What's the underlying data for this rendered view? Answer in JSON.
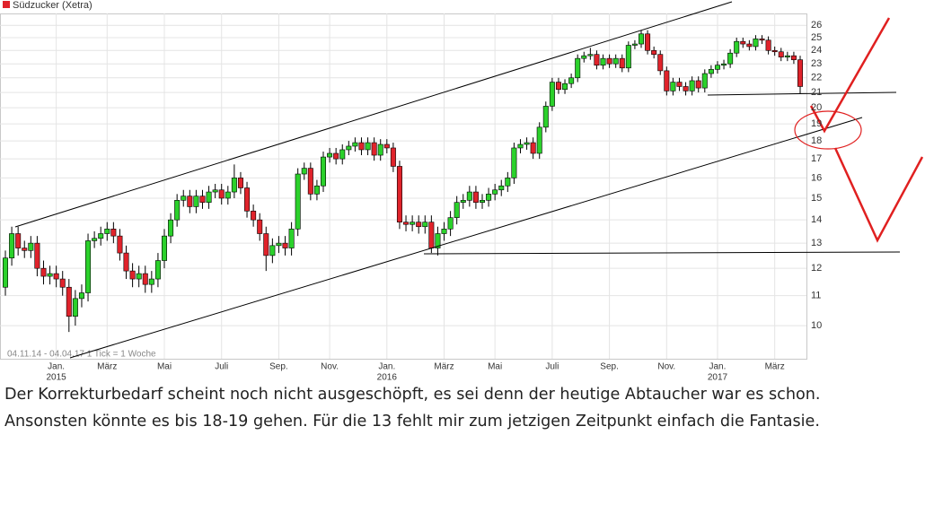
{
  "chart_data": {
    "type": "candlestick",
    "title": "Südzucker (Xetra)",
    "period_note": "04.11.14 - 04.04.17   1 Tick = 1 Woche",
    "categories": [
      null,
      null,
      null,
      null,
      null,
      null,
      null,
      null,
      "Jan.",
      null,
      null,
      null,
      null,
      null,
      null,
      null,
      "März",
      null,
      null,
      null,
      null,
      null,
      null,
      null,
      null,
      "Mai",
      null,
      null,
      null,
      null,
      null,
      null,
      null,
      null,
      "Juli",
      null,
      null,
      null,
      null,
      null,
      null,
      null,
      null,
      "Sep.",
      null,
      null,
      null,
      null,
      null,
      null,
      null,
      "Nov.",
      null,
      null,
      null,
      null,
      null,
      null,
      null,
      null,
      "Jan.",
      null,
      null,
      null,
      null,
      null,
      null,
      null,
      null,
      "März",
      null,
      null,
      null,
      null,
      null,
      null,
      null,
      "Mai",
      null,
      null,
      null,
      null,
      null,
      null,
      null,
      null,
      "Juli",
      null,
      null,
      null,
      null,
      null,
      null,
      null,
      null,
      "Sep.",
      null,
      null,
      null,
      null,
      null,
      null,
      null,
      null,
      "Nov.",
      null,
      null,
      null,
      null,
      null,
      null,
      null,
      "Jan.",
      null,
      null,
      null,
      null,
      null,
      null,
      null,
      null,
      "März",
      null,
      null,
      null,
      null
    ],
    "category_years": [
      null,
      null,
      null,
      null,
      null,
      null,
      null,
      null,
      "2015",
      null,
      null,
      null,
      null,
      null,
      null,
      null,
      null,
      null,
      null,
      null,
      null,
      null,
      null,
      null,
      null,
      null,
      null,
      null,
      null,
      null,
      null,
      null,
      null,
      null,
      null,
      null,
      null,
      null,
      null,
      null,
      null,
      null,
      null,
      null,
      null,
      null,
      null,
      null,
      null,
      null,
      null,
      null,
      null,
      null,
      null,
      null,
      null,
      null,
      null,
      null,
      "2016",
      null,
      null,
      null,
      null,
      null,
      null,
      null,
      null,
      null,
      null,
      null,
      null,
      null,
      null,
      null,
      null,
      null,
      null,
      null,
      null,
      null,
      null,
      null,
      null,
      null,
      null,
      null,
      null,
      null,
      null,
      null,
      null,
      null,
      null,
      null,
      null,
      null,
      null,
      null,
      null,
      null,
      null,
      null,
      null,
      null,
      null,
      null,
      null,
      null,
      null,
      null,
      "2017",
      null,
      null,
      null,
      null,
      null,
      null,
      null,
      null,
      null,
      null,
      null,
      null,
      null
    ],
    "open": [
      11.3,
      12.4,
      13.4,
      12.8,
      12.7,
      13.0,
      12.0,
      11.7,
      11.8,
      11.6,
      11.3,
      10.3,
      10.9,
      11.1,
      13.1,
      13.2,
      13.4,
      13.6,
      13.3,
      12.6,
      11.9,
      11.6,
      11.8,
      11.4,
      11.6,
      12.3,
      13.3,
      14.0,
      14.9,
      15.1,
      14.6,
      15.1,
      14.8,
      15.3,
      15.4,
      15.0,
      15.3,
      16.0,
      15.5,
      14.4,
      14.0,
      13.4,
      12.5,
      12.9,
      13.0,
      12.8,
      13.6,
      16.2,
      16.5,
      15.2,
      15.6,
      17.1,
      17.3,
      17.0,
      17.5,
      17.7,
      17.9,
      17.5,
      17.9,
      17.2,
      17.8,
      17.6,
      16.6,
      13.9,
      13.8,
      13.9,
      13.7,
      13.9,
      12.8,
      13.4,
      13.6,
      14.1,
      14.8,
      14.9,
      15.3,
      14.8,
      14.9,
      15.2,
      15.4,
      15.6,
      16.0,
      17.6,
      17.8,
      17.9,
      17.3,
      18.8,
      20.1,
      21.7,
      21.2,
      21.6,
      22.0,
      23.4,
      23.6,
      23.7,
      22.9,
      23.4,
      23.0,
      23.4,
      22.7,
      24.4,
      24.5,
      25.3,
      24.0,
      23.7,
      22.5,
      21.1,
      21.7,
      21.4,
      21.1,
      21.8,
      21.3,
      22.3,
      22.6,
      22.9,
      23.0,
      23.8,
      24.7,
      24.5,
      24.3,
      24.9,
      24.8,
      24.0,
      23.9,
      23.5,
      23.6,
      23.3
    ],
    "high": [
      12.7,
      13.7,
      13.7,
      13.1,
      13.3,
      13.3,
      12.3,
      12.1,
      12.1,
      11.9,
      11.6,
      11.2,
      11.4,
      13.4,
      13.5,
      13.7,
      13.9,
      13.9,
      13.6,
      12.9,
      12.2,
      12.1,
      12.1,
      11.9,
      12.6,
      13.6,
      14.3,
      15.2,
      15.4,
      15.4,
      15.4,
      15.4,
      15.6,
      15.7,
      15.7,
      15.6,
      16.7,
      16.3,
      15.8,
      14.7,
      14.3,
      13.7,
      13.2,
      13.3,
      13.3,
      13.9,
      16.5,
      16.8,
      16.8,
      15.9,
      17.4,
      17.6,
      17.6,
      17.8,
      18.0,
      18.2,
      18.2,
      18.2,
      18.2,
      18.1,
      18.1,
      17.9,
      16.9,
      14.2,
      14.2,
      14.2,
      14.2,
      14.2,
      13.7,
      13.9,
      14.4,
      15.1,
      15.2,
      15.6,
      15.6,
      15.2,
      15.5,
      15.7,
      15.9,
      16.3,
      17.9,
      18.1,
      18.2,
      18.2,
      19.1,
      20.4,
      22.0,
      22.0,
      21.9,
      22.3,
      23.7,
      23.9,
      24.2,
      24.0,
      23.7,
      23.7,
      23.7,
      23.7,
      24.7,
      24.8,
      25.6,
      25.6,
      24.3,
      24.0,
      22.8,
      22.0,
      22.0,
      21.7,
      22.1,
      22.1,
      22.6,
      22.9,
      23.2,
      23.3,
      24.1,
      25.0,
      25.0,
      24.8,
      25.2,
      25.2,
      25.1,
      24.3,
      24.2,
      23.9,
      23.9,
      23.6
    ],
    "low": [
      11.0,
      12.1,
      12.5,
      12.4,
      12.4,
      11.7,
      11.4,
      11.4,
      11.3,
      11.0,
      9.8,
      10.0,
      10.6,
      10.8,
      12.8,
      12.9,
      13.1,
      13.0,
      12.3,
      11.6,
      11.3,
      11.3,
      11.1,
      11.1,
      11.3,
      12.0,
      13.0,
      13.7,
      14.6,
      14.3,
      14.3,
      14.5,
      14.5,
      15.0,
      14.7,
      14.7,
      15.0,
      15.2,
      14.1,
      13.7,
      13.1,
      11.9,
      12.2,
      12.6,
      12.5,
      12.5,
      13.3,
      15.9,
      14.9,
      14.9,
      15.3,
      16.8,
      16.7,
      16.7,
      17.2,
      17.4,
      17.2,
      17.2,
      16.9,
      16.9,
      17.3,
      16.3,
      13.6,
      13.5,
      13.5,
      13.4,
      13.4,
      12.6,
      12.5,
      13.1,
      13.3,
      13.8,
      14.5,
      14.6,
      14.5,
      14.5,
      14.6,
      14.9,
      15.1,
      15.3,
      15.7,
      17.3,
      17.5,
      17.0,
      17.0,
      18.5,
      19.8,
      20.9,
      20.9,
      21.3,
      21.7,
      23.1,
      23.3,
      22.6,
      22.6,
      22.7,
      22.7,
      22.4,
      22.4,
      24.1,
      24.2,
      23.7,
      23.4,
      22.2,
      20.8,
      20.8,
      21.1,
      20.8,
      20.8,
      21.0,
      21.0,
      22.0,
      22.3,
      22.6,
      22.7,
      23.5,
      24.2,
      24.0,
      24.0,
      24.5,
      23.7,
      23.6,
      23.2,
      23.2,
      23.0,
      20.9
    ],
    "close": [
      12.4,
      13.4,
      12.8,
      12.7,
      13.0,
      12.0,
      11.7,
      11.8,
      11.6,
      11.3,
      10.3,
      10.9,
      11.1,
      13.1,
      13.2,
      13.4,
      13.6,
      13.3,
      12.6,
      11.9,
      11.6,
      11.8,
      11.4,
      11.6,
      12.3,
      13.3,
      14.0,
      14.9,
      15.1,
      14.6,
      15.1,
      14.8,
      15.3,
      15.4,
      15.0,
      15.3,
      16.0,
      15.5,
      14.4,
      14.0,
      13.4,
      12.5,
      12.9,
      13.0,
      12.8,
      13.6,
      16.2,
      16.5,
      15.2,
      15.6,
      17.1,
      17.3,
      17.0,
      17.5,
      17.7,
      17.9,
      17.5,
      17.9,
      17.2,
      17.8,
      17.6,
      16.6,
      13.9,
      13.8,
      13.9,
      13.7,
      13.9,
      12.8,
      13.4,
      13.6,
      14.1,
      14.8,
      14.9,
      15.3,
      14.8,
      14.9,
      15.2,
      15.4,
      15.6,
      16.0,
      17.6,
      17.8,
      17.9,
      17.3,
      18.8,
      20.1,
      21.7,
      21.2,
      21.6,
      22.0,
      23.4,
      23.6,
      23.7,
      22.9,
      23.4,
      23.0,
      23.4,
      22.7,
      24.4,
      24.5,
      25.3,
      24.0,
      23.7,
      22.5,
      21.1,
      21.7,
      21.4,
      21.1,
      21.8,
      21.3,
      22.3,
      22.6,
      22.9,
      23.0,
      23.8,
      24.7,
      24.5,
      24.3,
      24.9,
      24.8,
      24.0,
      23.9,
      23.5,
      23.6,
      23.3,
      21.4
    ],
    "up_color": "#2bd12b",
    "down_color": "#e0232b",
    "legend_color": "#e0232b",
    "ylim": [
      9,
      27
    ],
    "yticks": [
      10,
      11,
      12,
      13,
      14,
      15,
      16,
      17,
      18,
      19,
      20,
      21,
      22,
      23,
      24,
      25,
      26
    ],
    "log_scale": true,
    "grid": true
  },
  "comment": {
    "lines": [
      "Der Korrekturbedarf scheint noch nicht ausgeschöpft, es sei denn der heutige Abtaucher war es schon.",
      "Ansonsten könnte es bis 18-19 gehen. Für die 13 fehlt mir zum jetzigen Zeitpunkt einfach die Fantasie."
    ]
  }
}
